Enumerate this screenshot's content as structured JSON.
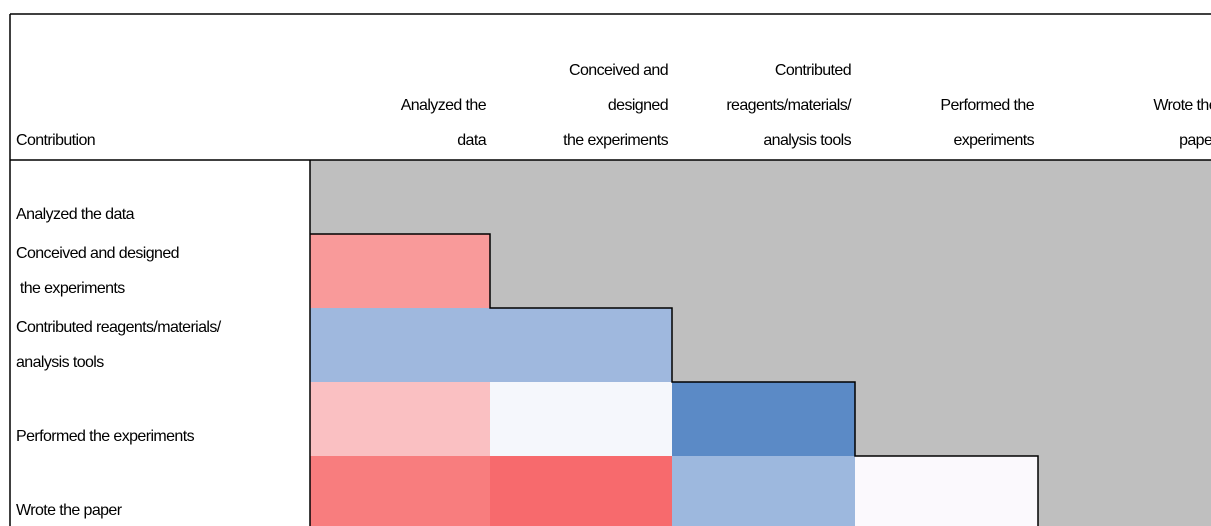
{
  "table": {
    "corner": "Contribution",
    "columns": [
      [
        "Analyzed the",
        "data"
      ],
      [
        "Conceived and",
        "designed",
        "the experiments"
      ],
      [
        "Contributed",
        "reagents/materials/",
        "analysis tools"
      ],
      [
        "Performed the",
        "experiments"
      ],
      [
        "Wrote the",
        "paper"
      ]
    ],
    "rows": [
      {
        "label": [
          "Analyzed the data"
        ],
        "colors": [
          "#bfbfbf",
          "#bfbfbf",
          "#bfbfbf",
          "#bfbfbf",
          "#bfbfbf"
        ]
      },
      {
        "label": [
          "Conceived and designed",
          " the experiments"
        ],
        "colors": [
          "#f99a9a",
          "#bfbfbf",
          "#bfbfbf",
          "#bfbfbf",
          "#bfbfbf"
        ]
      },
      {
        "label": [
          "Contributed reagents/materials/",
          "analysis tools"
        ],
        "colors": [
          "#9fb8de",
          "#9fb8de",
          "#bfbfbf",
          "#bfbfbf",
          "#bfbfbf"
        ]
      },
      {
        "label": [
          "Performed the experiments"
        ],
        "colors": [
          "#fac0c2",
          "#f5f7fc",
          "#5b8ac6",
          "#bfbfbf",
          "#bfbfbf"
        ]
      },
      {
        "label": [
          "Wrote the paper"
        ],
        "colors": [
          "#f87d7e",
          "#f76a6d",
          "#9db8de",
          "#fbf9fd",
          "#bfbfbf"
        ]
      }
    ]
  }
}
